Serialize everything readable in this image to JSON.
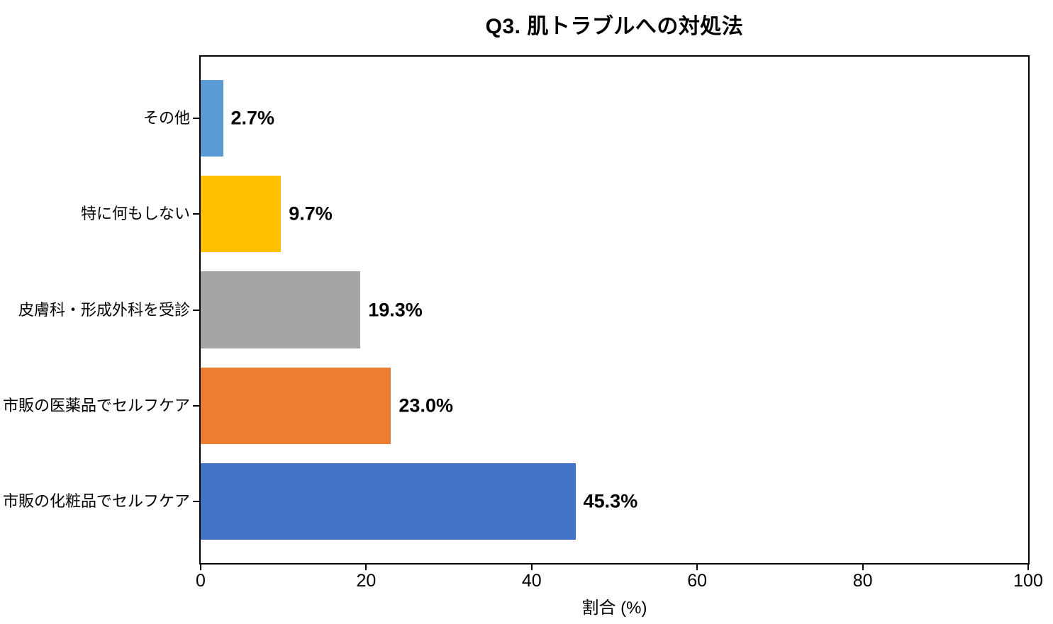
{
  "title": "Q3. 肌トラブルへの対処法",
  "chart_data": {
    "type": "bar",
    "orientation": "horizontal",
    "title": "Q3. 肌トラブルへの対処法",
    "categories": [
      "その他",
      "特に何もしない",
      "皮膚科・形成外科を受診",
      "市販の医薬品でセルフケア",
      "市販の化粧品でセルフケア"
    ],
    "values": [
      2.7,
      9.7,
      19.3,
      23.0,
      45.3
    ],
    "value_labels": [
      "2.7%",
      "9.7%",
      "19.3%",
      "23.0%",
      "45.3%"
    ],
    "bar_colors": [
      "#5B9BD5",
      "#FFC000",
      "#A5A5A5",
      "#ED7D31",
      "#4472C4"
    ],
    "xlabel": "割合 (%)",
    "xlim": [
      0,
      100
    ],
    "xticks": [
      0,
      20,
      40,
      60,
      80,
      100
    ],
    "xtick_labels": [
      "0",
      "20",
      "40",
      "60",
      "80",
      "100"
    ],
    "grid": false,
    "legend": "none",
    "background_color": "#FFFFFF",
    "frame": true,
    "text_color": "#000000"
  }
}
